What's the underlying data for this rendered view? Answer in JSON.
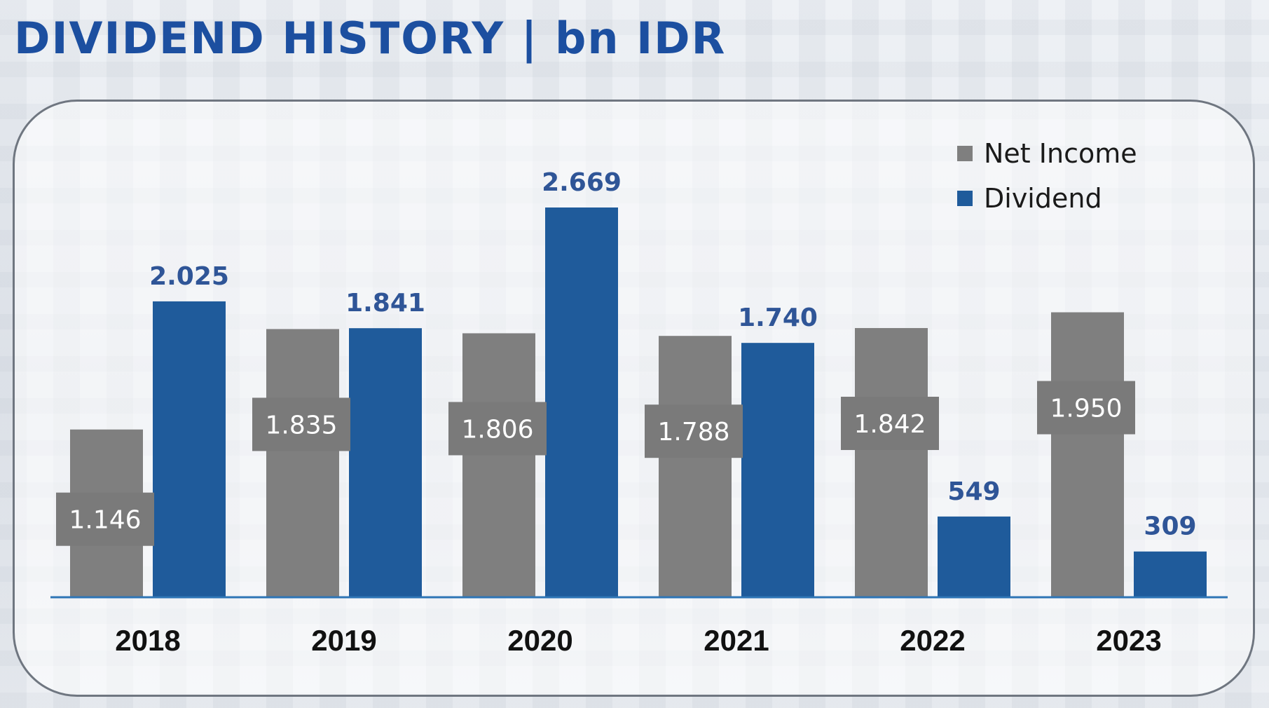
{
  "header": {
    "title": "DIVIDEND HISTORY  |  bn IDR"
  },
  "chart_data": {
    "type": "bar",
    "title": "DIVIDEND HISTORY | bn IDR",
    "xlabel": "",
    "ylabel": "",
    "ylim": [
      0,
      2800
    ],
    "grid": false,
    "legend_position": "top-right",
    "categories": [
      "2018",
      "2019",
      "2020",
      "2021",
      "2022",
      "2023"
    ],
    "series": [
      {
        "name": "Net Income",
        "color": "#7f7f7f",
        "values": [
          1146,
          1835,
          1806,
          1788,
          1842,
          1950
        ],
        "labels": [
          "1.146",
          "1.835",
          "1.806",
          "1.788",
          "1.842",
          "1.950"
        ]
      },
      {
        "name": "Dividend",
        "color": "#1f5b9b",
        "values": [
          2025,
          1841,
          2669,
          1740,
          549,
          309
        ],
        "labels": [
          "2.025",
          "1.841",
          "2.669",
          "1.740",
          "549",
          "309"
        ]
      }
    ],
    "label_box_color": "#7a7a7a",
    "value_label_color": "#2f5597",
    "axis_color": "#2e75b6"
  }
}
